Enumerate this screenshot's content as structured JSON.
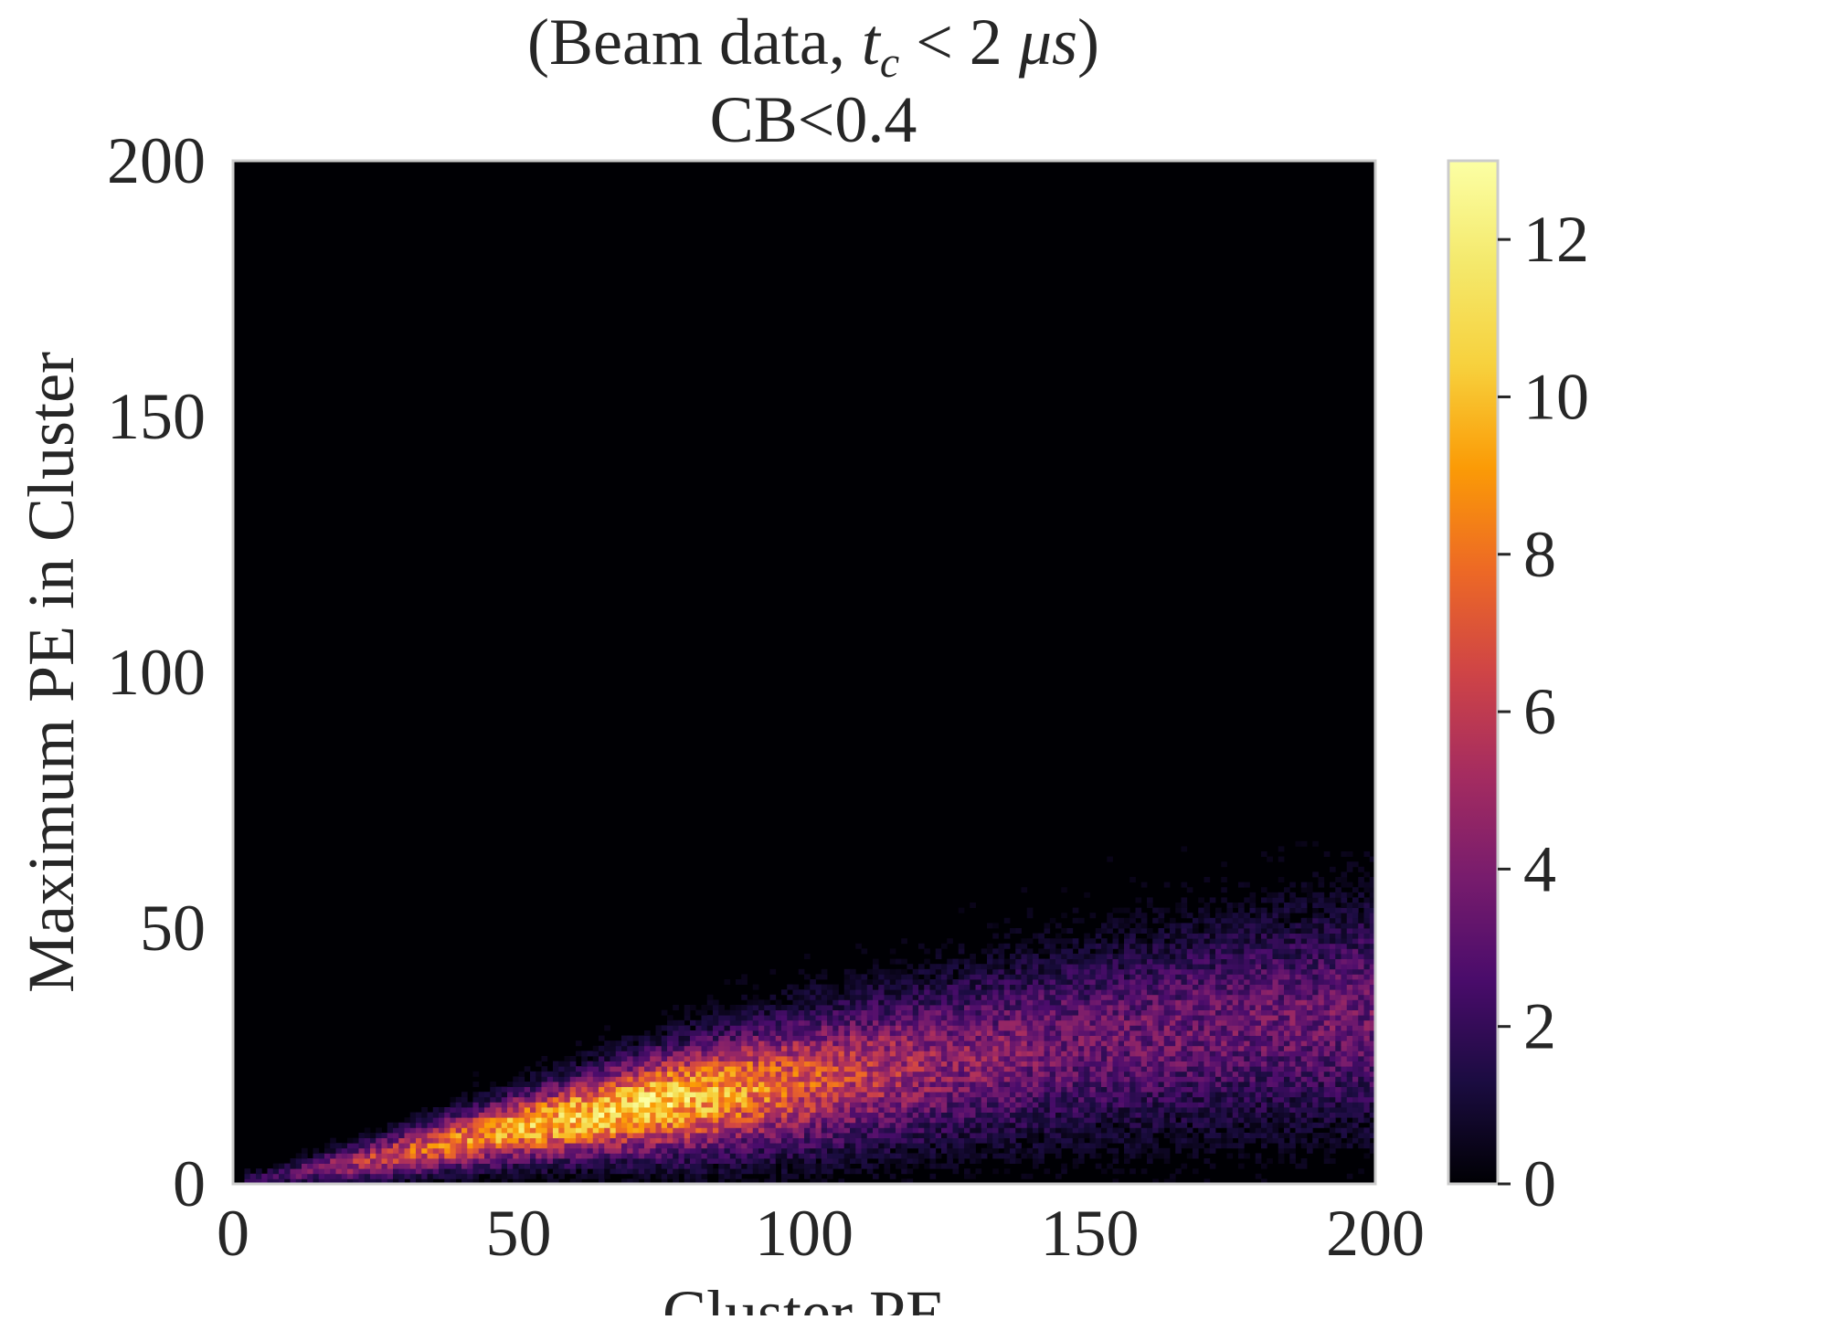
{
  "chart_data": {
    "type": "heatmap",
    "title_line1_prefix": "(Beam data, ",
    "title_line1_var": "t",
    "title_line1_sub": "c",
    "title_line1_rel": " < 2 ",
    "title_line1_unit_mu": "μ",
    "title_line1_unit_s": "s",
    "title_line1_suffix": ")",
    "title_line2": "CB<0.4",
    "xlabel": "Cluster PE",
    "ylabel": "Maximum PE in Cluster",
    "xlim": [
      0,
      200
    ],
    "ylim": [
      0,
      200
    ],
    "xticks": [
      "0",
      "50",
      "100",
      "150",
      "200"
    ],
    "xtick_values": [
      0,
      50,
      100,
      150,
      200
    ],
    "yticks": [
      "0",
      "50",
      "100",
      "150",
      "200"
    ],
    "ytick_values": [
      0,
      50,
      100,
      150,
      200
    ],
    "colormap": "inferno",
    "colorbar": {
      "range": [
        0,
        13
      ],
      "ticks": [
        "0",
        "2",
        "4",
        "6",
        "8",
        "10",
        "12"
      ],
      "tick_values": [
        0,
        2,
        4,
        6,
        8,
        10,
        12
      ]
    },
    "bins": {
      "x_count": 200,
      "y_count": 200,
      "bin_width": 1
    },
    "ridge": {
      "description_points_x": [
        5,
        25,
        50,
        75,
        100,
        125,
        150,
        175,
        200
      ],
      "center_y": [
        1,
        5,
        11,
        16,
        20,
        24,
        28,
        31,
        33
      ],
      "spread_y": [
        1,
        2.5,
        4,
        6,
        8,
        9.5,
        11,
        12,
        13
      ],
      "peak_count": [
        2,
        6,
        10,
        11,
        7,
        4.5,
        3.5,
        3.5,
        3.5
      ]
    },
    "grid": false
  },
  "colors": {
    "background": "#000004",
    "axis_text": "#262626",
    "frame": "#cccccc"
  }
}
